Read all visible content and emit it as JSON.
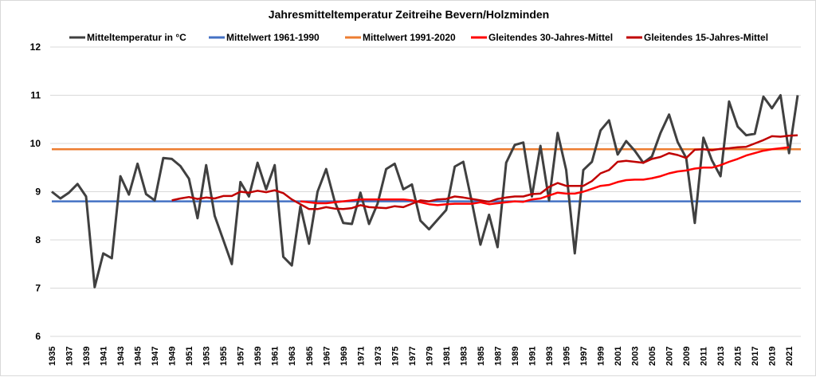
{
  "chart_data": {
    "type": "line",
    "title": "Jahresmitteltemperatur Zeitreihe Bevern/Holzminden",
    "xlabel": "",
    "ylabel": "",
    "ylim": [
      6,
      12
    ],
    "yticks": [
      6,
      7,
      8,
      9,
      10,
      11,
      12
    ],
    "xlim": [
      1935,
      2022
    ],
    "xtick_labels": [
      "1935",
      "1937",
      "1939",
      "1941",
      "1943",
      "1945",
      "1947",
      "1949",
      "1951",
      "1953",
      "1955",
      "1957",
      "1959",
      "1961",
      "1963",
      "1965",
      "1967",
      "1969",
      "1971",
      "1973",
      "1975",
      "1977",
      "1979",
      "1981",
      "1983",
      "1985",
      "1987",
      "1989",
      "1991",
      "1993",
      "1995",
      "1997",
      "1999",
      "2001",
      "2003",
      "2005",
      "2007",
      "2009",
      "2011",
      "2013",
      "2015",
      "2017",
      "2019",
      "2021"
    ],
    "grid": true,
    "legend_position": "top",
    "x": [
      1935,
      1936,
      1937,
      1938,
      1939,
      1940,
      1941,
      1942,
      1943,
      1944,
      1945,
      1946,
      1947,
      1948,
      1949,
      1950,
      1951,
      1952,
      1953,
      1954,
      1955,
      1956,
      1957,
      1958,
      1959,
      1960,
      1961,
      1962,
      1963,
      1964,
      1965,
      1966,
      1967,
      1968,
      1969,
      1970,
      1971,
      1972,
      1973,
      1974,
      1975,
      1976,
      1977,
      1978,
      1979,
      1980,
      1981,
      1982,
      1983,
      1984,
      1985,
      1986,
      1987,
      1988,
      1989,
      1990,
      1991,
      1992,
      1993,
      1994,
      1995,
      1996,
      1997,
      1998,
      1999,
      2000,
      2001,
      2002,
      2003,
      2004,
      2005,
      2006,
      2007,
      2008,
      2009,
      2010,
      2011,
      2012,
      2013,
      2014,
      2015,
      2016,
      2017,
      2018,
      2019,
      2020,
      2021,
      2022
    ],
    "series": [
      {
        "name": "Mitteltemperatur in °C",
        "color": "#404040",
        "values": [
          9.0,
          8.86,
          8.98,
          9.16,
          8.9,
          7.02,
          7.72,
          7.62,
          9.32,
          8.94,
          9.58,
          8.95,
          8.82,
          9.7,
          9.68,
          9.53,
          9.27,
          8.45,
          9.55,
          8.5,
          8.0,
          7.5,
          9.2,
          8.9,
          9.6,
          9.05,
          9.55,
          7.65,
          7.47,
          8.7,
          7.92,
          9.0,
          9.47,
          8.8,
          8.35,
          8.33,
          8.98,
          8.33,
          8.75,
          9.47,
          9.58,
          9.05,
          9.15,
          8.4,
          8.22,
          8.42,
          8.62,
          9.52,
          9.62,
          8.78,
          7.9,
          8.52,
          7.85,
          9.6,
          9.97,
          10.02,
          8.9,
          9.95,
          8.82,
          10.22,
          9.45,
          7.72,
          9.45,
          9.62,
          10.27,
          10.48,
          9.77,
          10.05,
          9.85,
          9.6,
          9.73,
          10.22,
          10.6,
          10.03,
          9.7,
          8.35,
          10.12,
          9.65,
          9.32,
          10.87,
          10.35,
          10.17,
          10.2,
          10.97,
          10.73,
          11.0,
          9.8,
          11.0
        ]
      },
      {
        "name": "Mittelwert 1961-1990",
        "color": "#4472c4",
        "constant": 8.8
      },
      {
        "name": "Mittelwert 1991-2020",
        "color": "#ed7d31",
        "constant": 9.88
      },
      {
        "name": "Gleitendes 30-Jahres-Mittel",
        "color": "#ff0000",
        "start_year": 1964,
        "values": [
          8.8,
          8.78,
          8.76,
          8.76,
          8.78,
          8.8,
          8.82,
          8.84,
          8.84,
          8.84,
          8.84,
          8.84,
          8.84,
          8.82,
          8.78,
          8.74,
          8.72,
          8.74,
          8.75,
          8.75,
          8.75,
          8.78,
          8.74,
          8.76,
          8.78,
          8.8,
          8.79,
          8.84,
          8.86,
          8.92,
          8.98,
          8.96,
          8.96,
          9.0,
          9.06,
          9.12,
          9.14,
          9.2,
          9.24,
          9.25,
          9.25,
          9.28,
          9.32,
          9.38,
          9.42,
          9.44,
          9.48,
          9.5,
          9.5,
          9.55,
          9.62,
          9.68,
          9.75,
          9.8,
          9.85,
          9.88,
          9.9,
          9.92
        ]
      },
      {
        "name": "Gleitendes 15-Jahres-Mittel",
        "color": "#c00000",
        "start_year": 1949,
        "values": [
          8.82,
          8.86,
          8.89,
          8.85,
          8.88,
          8.86,
          8.91,
          8.91,
          9.0,
          8.98,
          9.02,
          8.99,
          9.03,
          8.97,
          8.84,
          8.74,
          8.64,
          8.64,
          8.68,
          8.65,
          8.64,
          8.66,
          8.72,
          8.68,
          8.67,
          8.66,
          8.7,
          8.68,
          8.75,
          8.82,
          8.8,
          8.84,
          8.85,
          8.9,
          8.88,
          8.85,
          8.82,
          8.79,
          8.85,
          8.88,
          8.9,
          8.9,
          8.95,
          8.96,
          9.1,
          9.18,
          9.12,
          9.12,
          9.12,
          9.22,
          9.38,
          9.45,
          9.62,
          9.64,
          9.62,
          9.6,
          9.68,
          9.72,
          9.8,
          9.76,
          9.7,
          9.87,
          9.88,
          9.86,
          9.89,
          9.9,
          9.92,
          9.93,
          10.0,
          10.07,
          10.15,
          10.14,
          10.16,
          10.17
        ]
      }
    ]
  }
}
